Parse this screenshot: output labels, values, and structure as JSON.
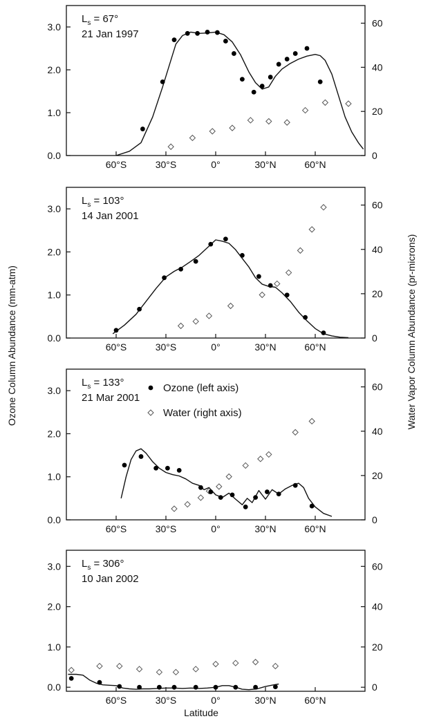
{
  "figure": {
    "left_axis_label": "Ozone Column Abundance (mm-atm)",
    "right_axis_label": "Water Vapor Column Abundance (pr-microns)",
    "x_axis_label": "Latitude"
  },
  "chart_data": [
    {
      "type": "scatter",
      "title": "",
      "annotation": {
        "ls_label": "L",
        "ls_sub": "s",
        "ls_value": " = 67°",
        "date": "21 Jan 1997"
      },
      "xlim": [
        -90,
        90
      ],
      "ylim_left": [
        0,
        3.5
      ],
      "ylim_right": [
        0,
        68
      ],
      "x_ticks": [
        {
          "v": -60,
          "label": "60°S"
        },
        {
          "v": -30,
          "label": "30°S"
        },
        {
          "v": 0,
          "label": "0°"
        },
        {
          "v": 30,
          "label": "30°N"
        },
        {
          "v": 60,
          "label": "60°N"
        }
      ],
      "y_left_ticks": [
        {
          "v": 0,
          "label": "0.0"
        },
        {
          "v": 1,
          "label": "1.0"
        },
        {
          "v": 2,
          "label": "2.0"
        },
        {
          "v": 3,
          "label": "3.0"
        }
      ],
      "y_right_ticks": [
        {
          "v": 0,
          "label": "0"
        },
        {
          "v": 20,
          "label": "20"
        },
        {
          "v": 40,
          "label": "40"
        },
        {
          "v": 60,
          "label": "60"
        }
      ],
      "ozone": {
        "x": [
          -44,
          -32,
          -25,
          -17,
          -11,
          -5,
          1,
          6,
          11,
          16,
          23,
          28,
          33,
          38,
          43,
          48,
          55,
          63
        ],
        "y": [
          0.62,
          1.72,
          2.7,
          2.85,
          2.85,
          2.88,
          2.87,
          2.67,
          2.38,
          1.78,
          1.48,
          1.62,
          1.83,
          2.13,
          2.25,
          2.38,
          2.5,
          1.72
        ]
      },
      "water": {
        "x": [
          -27,
          -14,
          -2,
          10,
          21,
          32,
          43,
          54,
          66,
          80
        ],
        "y": [
          4,
          8,
          11,
          12.5,
          16,
          15.5,
          15,
          20.5,
          24,
          23.5
        ]
      },
      "model": {
        "x": [
          -60,
          -52,
          -45,
          -38,
          -32,
          -28,
          -24,
          -20,
          -15,
          -10,
          -5,
          0,
          5,
          10,
          15,
          20,
          24,
          28,
          32,
          36,
          40,
          45,
          50,
          55,
          60,
          63,
          66,
          70,
          74,
          78,
          82,
          86,
          89
        ],
        "y": [
          0.0,
          0.1,
          0.3,
          0.9,
          1.6,
          2.1,
          2.6,
          2.8,
          2.88,
          2.85,
          2.86,
          2.88,
          2.82,
          2.65,
          2.35,
          1.95,
          1.7,
          1.55,
          1.6,
          1.85,
          2.02,
          2.15,
          2.25,
          2.32,
          2.36,
          2.33,
          2.22,
          1.9,
          1.4,
          0.9,
          0.55,
          0.3,
          0.15
        ]
      }
    },
    {
      "type": "scatter",
      "title": "",
      "annotation": {
        "ls_label": "L",
        "ls_sub": "s",
        "ls_value": " = 103°",
        "date": "14 Jan 2001"
      },
      "xlim": [
        -90,
        90
      ],
      "ylim_left": [
        0,
        3.5
      ],
      "ylim_right": [
        0,
        68
      ],
      "x_ticks": [
        {
          "v": -60,
          "label": "60°S"
        },
        {
          "v": -30,
          "label": "30°S"
        },
        {
          "v": 0,
          "label": "0°"
        },
        {
          "v": 30,
          "label": "30°N"
        },
        {
          "v": 60,
          "label": "60°N"
        }
      ],
      "y_left_ticks": [
        {
          "v": 0,
          "label": "0.0"
        },
        {
          "v": 1,
          "label": "1.0"
        },
        {
          "v": 2,
          "label": "2.0"
        },
        {
          "v": 3,
          "label": "3.0"
        }
      ],
      "y_right_ticks": [
        {
          "v": 0,
          "label": "0"
        },
        {
          "v": 20,
          "label": "20"
        },
        {
          "v": 40,
          "label": "40"
        },
        {
          "v": 60,
          "label": "60"
        }
      ],
      "ozone": {
        "x": [
          -60,
          -46,
          -31,
          -21,
          -12,
          -3,
          6,
          16,
          26,
          33,
          43,
          54,
          65
        ],
        "y": [
          0.18,
          0.67,
          1.4,
          1.6,
          1.78,
          2.18,
          2.3,
          1.92,
          1.43,
          1.22,
          1.0,
          0.48,
          0.12
        ]
      },
      "water": {
        "x": [
          -21,
          -12,
          -4,
          9,
          28,
          37,
          44,
          51,
          58,
          65
        ],
        "y": [
          5.5,
          7.5,
          10,
          14.5,
          19.5,
          24.5,
          29.5,
          39.5,
          49,
          59
        ]
      },
      "model": {
        "x": [
          -62,
          -55,
          -48,
          -42,
          -36,
          -30,
          -25,
          -20,
          -15,
          -10,
          -5,
          0,
          4,
          8,
          12,
          16,
          20,
          24,
          28,
          32,
          36,
          40,
          45,
          50,
          55,
          60,
          65,
          70,
          75,
          80
        ],
        "y": [
          0.1,
          0.3,
          0.55,
          0.85,
          1.15,
          1.42,
          1.55,
          1.65,
          1.78,
          1.92,
          2.1,
          2.28,
          2.25,
          2.2,
          2.05,
          1.85,
          1.65,
          1.4,
          1.25,
          1.2,
          1.18,
          1.05,
          0.85,
          0.6,
          0.4,
          0.22,
          0.1,
          0.05,
          0.02,
          0.01
        ]
      }
    },
    {
      "type": "scatter",
      "title": "",
      "annotation": {
        "ls_label": "L",
        "ls_sub": "s",
        "ls_value": " = 133°",
        "date": "21 Mar 2001"
      },
      "legend": {
        "ozone": "Ozone (left axis)",
        "water": "Water (right axis)"
      },
      "xlim": [
        -90,
        90
      ],
      "ylim_left": [
        0,
        3.5
      ],
      "ylim_right": [
        0,
        68
      ],
      "x_ticks": [
        {
          "v": -60,
          "label": "60°S"
        },
        {
          "v": -30,
          "label": "30°S"
        },
        {
          "v": 0,
          "label": "0°"
        },
        {
          "v": 30,
          "label": "30°N"
        },
        {
          "v": 60,
          "label": "60°N"
        }
      ],
      "y_left_ticks": [
        {
          "v": 0,
          "label": "0.0"
        },
        {
          "v": 1,
          "label": "1.0"
        },
        {
          "v": 2,
          "label": "2.0"
        },
        {
          "v": 3,
          "label": "3.0"
        }
      ],
      "y_right_ticks": [
        {
          "v": 0,
          "label": "0"
        },
        {
          "v": 20,
          "label": "20"
        },
        {
          "v": 40,
          "label": "40"
        },
        {
          "v": 60,
          "label": "60"
        }
      ],
      "ozone": {
        "x": [
          -55,
          -45,
          -36,
          -29,
          -22,
          -9,
          -3,
          3,
          10,
          18,
          24,
          31,
          38,
          48,
          58
        ],
        "y": [
          1.27,
          1.47,
          1.2,
          1.2,
          1.15,
          0.75,
          0.65,
          0.52,
          0.58,
          0.3,
          0.52,
          0.65,
          0.6,
          0.8,
          0.32
        ]
      },
      "water": {
        "x": [
          -25,
          -17,
          -9,
          -4,
          2,
          8,
          18,
          27,
          32,
          48,
          58
        ],
        "y": [
          5,
          7,
          10,
          13,
          15,
          19.5,
          24.5,
          27.5,
          29.5,
          39.5,
          44.5
        ]
      },
      "model": {
        "x": [
          -57,
          -54,
          -51,
          -48,
          -45,
          -42,
          -38,
          -34,
          -30,
          -26,
          -22,
          -18,
          -14,
          -10,
          -7,
          -4,
          0,
          4,
          8,
          12,
          16,
          19,
          22,
          26,
          30,
          34,
          38,
          42,
          46,
          50,
          53,
          56,
          60,
          65,
          70
        ],
        "y": [
          0.5,
          1.0,
          1.4,
          1.6,
          1.65,
          1.55,
          1.35,
          1.2,
          1.1,
          1.05,
          1.02,
          0.95,
          0.85,
          0.8,
          0.7,
          0.75,
          0.58,
          0.52,
          0.62,
          0.48,
          0.35,
          0.5,
          0.4,
          0.68,
          0.48,
          0.7,
          0.6,
          0.72,
          0.8,
          0.85,
          0.75,
          0.5,
          0.3,
          0.15,
          0.08
        ]
      }
    },
    {
      "type": "scatter",
      "title": "",
      "annotation": {
        "ls_label": "L",
        "ls_sub": "s",
        "ls_value": " = 306°",
        "date": "10 Jan 2002"
      },
      "xlim": [
        -90,
        90
      ],
      "ylim_left": [
        -0.1,
        3.4
      ],
      "ylim_right": [
        -2,
        68
      ],
      "x_ticks": [
        {
          "v": -60,
          "label": "60°S"
        },
        {
          "v": -30,
          "label": "30°S"
        },
        {
          "v": 0,
          "label": "0°"
        },
        {
          "v": 30,
          "label": "30°N"
        },
        {
          "v": 60,
          "label": "60°N"
        }
      ],
      "y_left_ticks": [
        {
          "v": 0,
          "label": "0.0"
        },
        {
          "v": 1,
          "label": "1.0"
        },
        {
          "v": 2,
          "label": "2.0"
        },
        {
          "v": 3,
          "label": "3.0"
        }
      ],
      "y_right_ticks": [
        {
          "v": 0,
          "label": "0"
        },
        {
          "v": 20,
          "label": "20"
        },
        {
          "v": 40,
          "label": "40"
        },
        {
          "v": 60,
          "label": "60"
        }
      ],
      "ozone": {
        "x": [
          -87,
          -70,
          -58,
          -46,
          -34,
          -25,
          -12,
          0,
          12,
          24,
          36
        ],
        "y": [
          0.22,
          0.12,
          0.02,
          0.0,
          0.0,
          0.0,
          0.0,
          0.0,
          0.0,
          0.0,
          0.01
        ]
      },
      "water": {
        "x": [
          -87,
          -70,
          -58,
          -46,
          -34,
          -24,
          -12,
          0,
          12,
          24,
          36
        ],
        "y": [
          8.5,
          10.5,
          10.5,
          9,
          7.5,
          7.5,
          9,
          11.5,
          12,
          12.5,
          10.5
        ]
      },
      "model": {
        "x": [
          -89,
          -84,
          -80,
          -76,
          -72,
          -68,
          -64,
          -60,
          -56,
          -52,
          -48,
          -44,
          -40,
          -35,
          -30,
          -25,
          -20,
          -15,
          -10,
          -5,
          0,
          4,
          8,
          12,
          16,
          20,
          25,
          30,
          35,
          38
        ],
        "y": [
          0.32,
          0.32,
          0.3,
          0.18,
          0.1,
          0.06,
          0.05,
          0.04,
          -0.02,
          -0.04,
          -0.05,
          -0.04,
          -0.04,
          -0.03,
          -0.02,
          -0.02,
          -0.03,
          -0.02,
          -0.03,
          -0.02,
          0.0,
          0.04,
          0.04,
          0.0,
          -0.05,
          -0.06,
          -0.04,
          0.02,
          0.06,
          0.08
        ]
      }
    }
  ]
}
